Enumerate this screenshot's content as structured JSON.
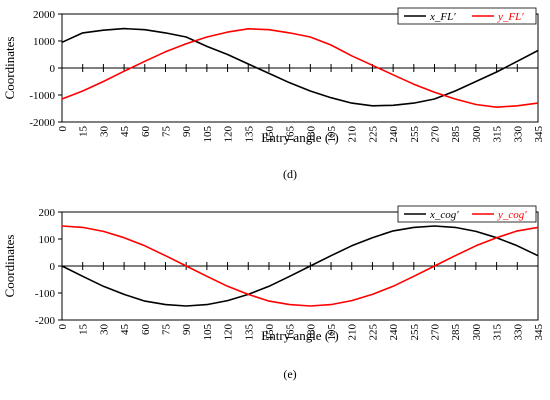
{
  "chart_data": [
    {
      "type": "line",
      "panel_label": "(d)",
      "xlabel": "Entry angle (°)",
      "ylabel": "Coordinates",
      "ylim": [
        -2000,
        2000
      ],
      "yticks": [
        "2000",
        "1000",
        "0",
        "-1000",
        "-2000"
      ],
      "xticks": [
        "0",
        "15",
        "30",
        "45",
        "60",
        "75",
        "90",
        "105",
        "120",
        "135",
        "150",
        "165",
        "180",
        "195",
        "210",
        "225",
        "240",
        "255",
        "270",
        "285",
        "300",
        "315",
        "330",
        "345"
      ],
      "x": [
        0,
        15,
        30,
        45,
        60,
        75,
        90,
        105,
        120,
        135,
        150,
        165,
        180,
        195,
        210,
        225,
        240,
        255,
        270,
        285,
        300,
        315,
        330,
        345
      ],
      "grid": false,
      "legend_position": "top-right",
      "series": [
        {
          "name": "x_FL′",
          "color": "#000000",
          "values": [
            950,
            1300,
            1400,
            1460,
            1420,
            1300,
            1150,
            800,
            500,
            150,
            -200,
            -550,
            -850,
            -1100,
            -1300,
            -1400,
            -1380,
            -1300,
            -1150,
            -850,
            -500,
            -150,
            250,
            650
          ]
        },
        {
          "name": "y_FL′",
          "color": "#ff0000",
          "values": [
            -1150,
            -850,
            -500,
            -120,
            250,
            600,
            900,
            1150,
            1330,
            1450,
            1420,
            1300,
            1150,
            850,
            450,
            100,
            -250,
            -600,
            -900,
            -1150,
            -1350,
            -1450,
            -1400,
            -1300
          ]
        }
      ]
    },
    {
      "type": "line",
      "panel_label": "(e)",
      "xlabel": "Entry angle (°)",
      "ylabel": "Coordinates",
      "ylim": [
        -200,
        200
      ],
      "yticks": [
        "200",
        "100",
        "0",
        "-100",
        "-200"
      ],
      "xticks": [
        "0",
        "15",
        "30",
        "45",
        "60",
        "75",
        "90",
        "105",
        "120",
        "135",
        "150",
        "165",
        "180",
        "195",
        "210",
        "225",
        "240",
        "255",
        "270",
        "285",
        "300",
        "315",
        "330",
        "345"
      ],
      "x": [
        0,
        15,
        30,
        45,
        60,
        75,
        90,
        105,
        120,
        135,
        150,
        165,
        180,
        195,
        210,
        225,
        240,
        255,
        270,
        285,
        300,
        315,
        330,
        345
      ],
      "grid": false,
      "legend_position": "top-right",
      "series": [
        {
          "name": "x_cog′",
          "color": "#000000",
          "values": [
            0,
            -38,
            -75,
            -105,
            -130,
            -143,
            -148,
            -143,
            -128,
            -105,
            -75,
            -38,
            0,
            38,
            75,
            105,
            130,
            143,
            148,
            143,
            128,
            105,
            75,
            38
          ]
        },
        {
          "name": "y_cog′",
          "color": "#ff0000",
          "values": [
            148,
            143,
            128,
            105,
            75,
            38,
            0,
            -38,
            -75,
            -105,
            -130,
            -143,
            -148,
            -143,
            -128,
            -105,
            -75,
            -38,
            0,
            38,
            75,
            105,
            130,
            143
          ]
        }
      ]
    }
  ]
}
